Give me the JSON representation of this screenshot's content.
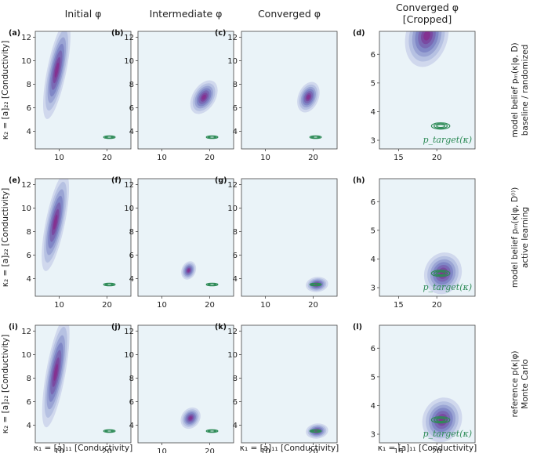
{
  "figure": {
    "column_titles": [
      "Initial φ",
      "Intermediate φ",
      "Converged φ",
      "Converged φ [Cropped]"
    ],
    "row_labels": [
      "model belief pₘ(κ|φ, D) baseline / randomized",
      "model belief pₘ(κ|φ, D⁽ⁱ⁾) active learning",
      "reference p(κ|φ) Monte Carlo"
    ],
    "xlabel": "κ₁ = [a]₁₁ [Conductivity]",
    "ylabel": "κ₂ = [a]₂₂ [Conductivity]",
    "target_label": "p_target(κ)",
    "colors": {
      "panel_bg": "#eaf3f8",
      "density_low": "#aab8dc",
      "density_mid": "#7c7fc0",
      "density_high": "#8a2a8c",
      "target": "#2e8b57"
    }
  },
  "chart_data": [
    {
      "type": "contour",
      "panel": "(a)",
      "xlim": [
        5,
        25
      ],
      "ylim": [
        2.5,
        12.5
      ],
      "xticks": [
        10,
        20
      ],
      "yticks": [
        4,
        6,
        8,
        10,
        12
      ],
      "belief_mean": [
        9.5,
        9.2
      ],
      "belief_sd": [
        1.1,
        1.6
      ],
      "belief_corr": 0.7,
      "target_mean": [
        20.5,
        3.5
      ],
      "show_target_label": false
    },
    {
      "type": "contour",
      "panel": "(b)",
      "xlim": [
        5,
        25
      ],
      "ylim": [
        2.5,
        12.5
      ],
      "xticks": [
        10,
        20
      ],
      "yticks": [
        4,
        6,
        8,
        10,
        12
      ],
      "belief_mean": [
        18.8,
        6.9
      ],
      "belief_sd": [
        1.1,
        0.55
      ],
      "belief_corr": 0.4,
      "target_mean": [
        20.5,
        3.5
      ],
      "show_target_label": false
    },
    {
      "type": "contour",
      "panel": "(c)",
      "xlim": [
        5,
        25
      ],
      "ylim": [
        2.5,
        12.5
      ],
      "xticks": [
        10,
        20
      ],
      "yticks": [
        4,
        6,
        8,
        10,
        12
      ],
      "belief_mean": [
        19.0,
        6.9
      ],
      "belief_sd": [
        0.9,
        0.5
      ],
      "belief_corr": 0.3,
      "target_mean": [
        20.5,
        3.5
      ],
      "show_target_label": false
    },
    {
      "type": "contour",
      "panel": "(d)",
      "xlim": [
        12.5,
        25
      ],
      "ylim": [
        2.7,
        6.8
      ],
      "xticks": [
        15,
        20
      ],
      "yticks": [
        3,
        4,
        5,
        6
      ],
      "belief_mean": [
        18.7,
        6.65
      ],
      "belief_sd": [
        1.1,
        0.42
      ],
      "belief_corr": 0.2,
      "target_mean": [
        20.5,
        3.5
      ],
      "show_target_label": true
    },
    {
      "type": "contour",
      "panel": "(e)",
      "xlim": [
        5,
        25
      ],
      "ylim": [
        2.5,
        12.5
      ],
      "xticks": [
        10,
        20
      ],
      "yticks": [
        4,
        6,
        8,
        10,
        12
      ],
      "belief_mean": [
        9.2,
        8.8
      ],
      "belief_sd": [
        1.1,
        1.6
      ],
      "belief_corr": 0.7,
      "target_mean": [
        20.5,
        3.5
      ],
      "show_target_label": false
    },
    {
      "type": "contour",
      "panel": "(f)",
      "xlim": [
        5,
        25
      ],
      "ylim": [
        2.5,
        12.5
      ],
      "xticks": [
        10,
        20
      ],
      "yticks": [
        4,
        6,
        8,
        10,
        12
      ],
      "belief_mean": [
        15.6,
        4.7
      ],
      "belief_sd": [
        0.6,
        0.3
      ],
      "belief_corr": 0.2,
      "target_mean": [
        20.5,
        3.5
      ],
      "show_target_label": false
    },
    {
      "type": "contour",
      "panel": "(g)",
      "xlim": [
        5,
        25
      ],
      "ylim": [
        2.5,
        12.5
      ],
      "xticks": [
        10,
        20
      ],
      "yticks": [
        4,
        6,
        8,
        10,
        12
      ],
      "belief_mean": [
        20.8,
        3.5
      ],
      "belief_sd": [
        0.9,
        0.25
      ],
      "belief_corr": 0.1,
      "target_mean": [
        20.5,
        3.5
      ],
      "show_target_label": false
    },
    {
      "type": "contour",
      "panel": "(h)",
      "xlim": [
        12.5,
        25
      ],
      "ylim": [
        2.7,
        6.8
      ],
      "xticks": [
        15,
        20
      ],
      "yticks": [
        3,
        4,
        5,
        6
      ],
      "belief_mean": [
        20.8,
        3.5
      ],
      "belief_sd": [
        0.95,
        0.28
      ],
      "belief_corr": 0.1,
      "target_mean": [
        20.5,
        3.5
      ],
      "show_target_label": true
    },
    {
      "type": "contour",
      "panel": "(i)",
      "xlim": [
        5,
        25
      ],
      "ylim": [
        2.5,
        12.5
      ],
      "xticks": [
        10,
        20
      ],
      "yticks": [
        4,
        6,
        8,
        10,
        12
      ],
      "belief_mean": [
        9.3,
        8.5
      ],
      "belief_sd": [
        1.1,
        1.8
      ],
      "belief_corr": 0.7,
      "target_mean": [
        20.5,
        3.5
      ],
      "show_target_label": false
    },
    {
      "type": "contour",
      "panel": "(j)",
      "xlim": [
        5,
        25
      ],
      "ylim": [
        2.5,
        12.5
      ],
      "xticks": [
        10,
        20
      ],
      "yticks": [
        4,
        6,
        8,
        10,
        12
      ],
      "belief_mean": [
        16.0,
        4.6
      ],
      "belief_sd": [
        0.8,
        0.35
      ],
      "belief_corr": 0.2,
      "target_mean": [
        20.5,
        3.5
      ],
      "show_target_label": false
    },
    {
      "type": "contour",
      "panel": "(k)",
      "xlim": [
        5,
        25
      ],
      "ylim": [
        2.5,
        12.5
      ],
      "xticks": [
        10,
        20
      ],
      "yticks": [
        4,
        6,
        8,
        10,
        12
      ],
      "belief_mean": [
        20.8,
        3.5
      ],
      "belief_sd": [
        0.9,
        0.25
      ],
      "belief_corr": 0.1,
      "target_mean": [
        20.5,
        3.5
      ],
      "show_target_label": false
    },
    {
      "type": "contour",
      "panel": "(l)",
      "xlim": [
        12.5,
        25
      ],
      "ylim": [
        2.7,
        6.8
      ],
      "xticks": [
        15,
        20
      ],
      "yticks": [
        3,
        4,
        5,
        6
      ],
      "belief_mean": [
        20.7,
        3.5
      ],
      "belief_sd": [
        1.0,
        0.3
      ],
      "belief_corr": 0.1,
      "target_mean": [
        20.5,
        3.5
      ],
      "show_target_label": true
    }
  ]
}
